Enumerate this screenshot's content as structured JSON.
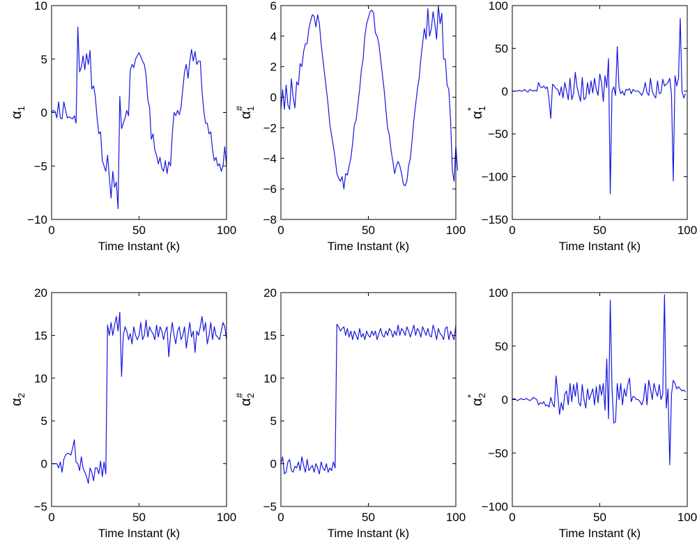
{
  "figure": {
    "description_title": "Six-panel time series figure"
  },
  "colors": {
    "series": "#1515e0",
    "axis": "#000000",
    "background": "#ffffff"
  },
  "chart_data": [
    {
      "id": "p11",
      "type": "line",
      "ylabel": {
        "symbol": "α",
        "sub": "1",
        "sup": ""
      },
      "xlabel": "Time Instant (k)",
      "xlim": [
        0,
        100
      ],
      "ylim": [
        -10,
        10
      ],
      "xticks": [
        0,
        50,
        100
      ],
      "yticks": [
        -10,
        -5,
        0,
        5,
        10
      ],
      "xtick_labels": [
        "0",
        "50",
        "100"
      ],
      "ytick_labels": [
        "−10",
        "−5",
        "0",
        "5",
        "10"
      ],
      "series": [
        {
          "name": "alpha1",
          "x_start": 0,
          "values": [
            0.0,
            0.2,
            0.1,
            -0.5,
            1.0,
            -0.5,
            -0.6,
            1.0,
            0.2,
            -0.5,
            -0.4,
            -0.5,
            -0.6,
            -0.3,
            -1.0,
            8.0,
            3.8,
            4.2,
            5.3,
            4.0,
            5.5,
            4.5,
            5.8,
            2.2,
            2.5,
            1.5,
            -0.5,
            -2.0,
            -1.8,
            -4.5,
            -5.0,
            -5.5,
            -4.0,
            -6.0,
            -8.0,
            -5.5,
            -7.0,
            -6.5,
            -9.0,
            1.5,
            -1.5,
            -1.0,
            -0.5,
            0.2,
            -0.3,
            4.0,
            4.5,
            4.2,
            5.0,
            5.3,
            5.6,
            5.2,
            4.8,
            4.5,
            3.5,
            1.2,
            0.5,
            -2.5,
            -2.0,
            -3.5,
            -4.0,
            -4.8,
            -4.2,
            -5.2,
            -5.5,
            -4.5,
            -5.7,
            -4.6,
            -5.0,
            -2.0,
            0.0,
            -0.3,
            0.2,
            -0.2,
            0.5,
            2.2,
            3.8,
            4.5,
            3.2,
            4.8,
            5.9,
            4.8,
            5.7,
            4.5,
            4.8,
            4.8,
            2.0,
            0.2,
            -1.0,
            -1.0,
            -2.0,
            -1.8,
            -3.5,
            -4.5,
            -4.2,
            -5.0,
            -4.8,
            -5.5,
            -5.0,
            -3.2,
            -5.0
          ]
        }
      ]
    },
    {
      "id": "p12",
      "type": "line",
      "ylabel": {
        "symbol": "α",
        "sub": "1",
        "sup": "#"
      },
      "xlabel": "Time Instant (k)",
      "xlim": [
        0,
        100
      ],
      "ylim": [
        -8,
        6
      ],
      "xticks": [
        0,
        50,
        100
      ],
      "yticks": [
        -8,
        -6,
        -4,
        -2,
        0,
        2,
        4,
        6
      ],
      "xtick_labels": [
        "0",
        "50",
        "100"
      ],
      "ytick_labels": [
        "−8",
        "−6",
        "−4",
        "−2",
        "0",
        "2",
        "4",
        "6"
      ],
      "series": [
        {
          "name": "alpha1-sharp",
          "x_start": 0,
          "values": [
            -0.8,
            0.5,
            -0.8,
            0.8,
            -0.5,
            -0.8,
            1.2,
            0.0,
            -0.7,
            1.0,
            0.8,
            2.2,
            2.0,
            3.0,
            3.5,
            3.5,
            4.5,
            5.0,
            5.4,
            5.3,
            4.6,
            5.4,
            4.8,
            3.5,
            2.5,
            1.5,
            0.5,
            -0.5,
            -1.8,
            -2.5,
            -3.2,
            -4.0,
            -5.0,
            -5.3,
            -5.5,
            -5.2,
            -6.0,
            -5.0,
            -5.1,
            -4.5,
            -4.0,
            -3.0,
            -1.8,
            -1.5,
            -0.5,
            0.5,
            1.8,
            2.5,
            4.0,
            4.8,
            5.2,
            5.6,
            5.7,
            5.5,
            4.2,
            4.0,
            3.5,
            2.5,
            1.5,
            0.5,
            -0.8,
            -2.0,
            -2.5,
            -3.5,
            -4.2,
            -5.0,
            -4.5,
            -4.2,
            -4.5,
            -5.0,
            -5.7,
            -5.8,
            -5.5,
            -4.5,
            -4.0,
            -2.8,
            -1.5,
            -0.5,
            0.5,
            1.2,
            2.5,
            3.5,
            4.5,
            3.8,
            5.8,
            4.0,
            4.5,
            5.6,
            4.8,
            3.8,
            6.0,
            4.8,
            5.5,
            2.5,
            2.5,
            0.8,
            0.5,
            -1.5,
            -4.8,
            -5.5,
            -3.2,
            -4.8
          ]
        }
      ]
    },
    {
      "id": "p13",
      "type": "line",
      "ylabel": {
        "symbol": "α",
        "sub": "1",
        "sup": "*"
      },
      "xlabel": "Time Instant (k)",
      "xlim": [
        0,
        100
      ],
      "ylim": [
        -150,
        100
      ],
      "xticks": [
        0,
        50,
        100
      ],
      "yticks": [
        -150,
        -100,
        -50,
        0,
        50,
        100
      ],
      "xtick_labels": [
        "0",
        "50",
        "100"
      ],
      "ytick_labels": [
        "−150",
        "−100",
        "−50",
        "0",
        "50",
        "100"
      ],
      "series": [
        {
          "name": "alpha1-star",
          "x_start": 0,
          "values": [
            0,
            0,
            0,
            0,
            1,
            0,
            0,
            2,
            0,
            -1,
            2,
            1,
            0,
            1,
            0,
            10,
            5,
            4,
            6,
            3,
            5,
            -10,
            -32,
            8,
            6,
            3,
            2,
            -5,
            5,
            -8,
            10,
            0,
            -10,
            15,
            -10,
            -3,
            22,
            5,
            -4,
            -12,
            16,
            -10,
            -8,
            10,
            -4,
            12,
            -2,
            15,
            2,
            -5,
            20,
            10,
            -12,
            18,
            4,
            38,
            -120,
            0,
            5,
            -5,
            52,
            5,
            -3,
            0,
            -5,
            2,
            1,
            3,
            -3,
            2,
            0,
            0,
            0,
            -2,
            -5,
            0,
            10,
            -2,
            -5,
            15,
            0,
            -5,
            -8,
            12,
            -3,
            -2,
            14,
            6,
            8,
            10,
            15,
            -4,
            -105,
            18,
            6,
            15,
            85,
            0,
            -8,
            -3
          ]
        }
      ]
    },
    {
      "id": "p21",
      "type": "line",
      "ylabel": {
        "symbol": "α",
        "sub": "2",
        "sup": ""
      },
      "xlabel": "Time Instant (k)",
      "xlim": [
        0,
        100
      ],
      "ylim": [
        -5,
        20
      ],
      "xticks": [
        0,
        50,
        100
      ],
      "yticks": [
        -5,
        0,
        5,
        10,
        15,
        20
      ],
      "xtick_labels": [
        "0",
        "50",
        "100"
      ],
      "ytick_labels": [
        "−5",
        "0",
        "5",
        "10",
        "15",
        "20"
      ],
      "series": [
        {
          "name": "alpha2",
          "x_start": 0,
          "values": [
            0.0,
            0.0,
            0.0,
            0.0,
            -0.5,
            0.2,
            -1.0,
            0.5,
            1.0,
            1.2,
            1.2,
            1.0,
            1.8,
            2.8,
            0.2,
            0.0,
            -0.8,
            0.8,
            -0.5,
            -1.0,
            -1.5,
            -2.3,
            -0.5,
            -1.0,
            -2.0,
            -0.5,
            -0.5,
            -1.2,
            0.3,
            -1.5,
            0.2,
            -1.2,
            16.2,
            15.0,
            16.5,
            15.0,
            16.2,
            17.2,
            15.5,
            17.7,
            10.2,
            15.0,
            16.0,
            15.5,
            14.5,
            15.2,
            14.0,
            16.0,
            15.0,
            14.5,
            15.0,
            16.5,
            14.5,
            15.0,
            16.8,
            14.8,
            16.0,
            15.5,
            15.2,
            14.5,
            16.2,
            14.8,
            16.0,
            15.5,
            14.5,
            15.5,
            16.0,
            12.5,
            15.0,
            16.5,
            15.0,
            14.0,
            15.5,
            16.0,
            14.5,
            15.0,
            16.0,
            13.5,
            15.0,
            16.5,
            14.8,
            15.5,
            13.0,
            15.5,
            15.0,
            16.0,
            17.2,
            15.5,
            16.5,
            14.0,
            15.0,
            16.5,
            14.5,
            16.0,
            15.0,
            14.8,
            14.5,
            15.5,
            16.5,
            16.0,
            14.5
          ]
        }
      ]
    },
    {
      "id": "p22",
      "type": "line",
      "ylabel": {
        "symbol": "α",
        "sub": "2",
        "sup": "#"
      },
      "xlabel": "Time Instant (k)",
      "xlim": [
        0,
        100
      ],
      "ylim": [
        -5,
        20
      ],
      "xticks": [
        0,
        50,
        100
      ],
      "yticks": [
        -5,
        0,
        5,
        10,
        15,
        20
      ],
      "xtick_labels": [
        "0",
        "50",
        "100"
      ],
      "ytick_labels": [
        "−5",
        "0",
        "5",
        "10",
        "15",
        "20"
      ],
      "series": [
        {
          "name": "alpha2-sharp",
          "x_start": 0,
          "values": [
            0.0,
            0.8,
            -1.2,
            -1.0,
            0.2,
            0.5,
            -0.8,
            -1.0,
            -0.3,
            -0.5,
            0.2,
            -0.8,
            0.8,
            -0.2,
            -1.0,
            0.5,
            -0.8,
            -0.5,
            -0.2,
            -1.0,
            0.0,
            -0.5,
            -1.2,
            0.2,
            -0.5,
            -0.8,
            0.0,
            -1.0,
            -0.5,
            -0.8,
            0.2,
            -0.5,
            16.3,
            16.0,
            15.5,
            15.8,
            16.0,
            15.0,
            15.8,
            14.8,
            15.5,
            14.5,
            15.5,
            15.0,
            14.5,
            15.8,
            14.8,
            15.2,
            14.5,
            15.5,
            15.0,
            14.8,
            15.5,
            15.0,
            15.5,
            14.5,
            15.2,
            15.8,
            15.0,
            14.8,
            15.5,
            15.0,
            15.8,
            15.5,
            14.8,
            15.5,
            15.0,
            16.2,
            15.0,
            15.8,
            15.5,
            15.0,
            16.0,
            15.5,
            14.8,
            15.5,
            16.2,
            15.0,
            15.8,
            15.5,
            14.8,
            16.0,
            15.5,
            15.0,
            15.8,
            15.0,
            14.8,
            16.2,
            15.5,
            14.5,
            15.8,
            15.2,
            15.0,
            14.5,
            15.8,
            16.0,
            14.5,
            15.5,
            15.0,
            14.5,
            16.2
          ]
        }
      ]
    },
    {
      "id": "p23",
      "type": "line",
      "ylabel": {
        "symbol": "α",
        "sub": "2",
        "sup": "*"
      },
      "xlabel": "Time Instant (k)",
      "xlim": [
        0,
        100
      ],
      "ylim": [
        -100,
        100
      ],
      "xticks": [
        0,
        50,
        100
      ],
      "yticks": [
        -100,
        -50,
        0,
        50,
        100
      ],
      "xtick_labels": [
        "0",
        "50",
        "100"
      ],
      "ytick_labels": [
        "−100",
        "−50",
        "0",
        "50",
        "100"
      ],
      "series": [
        {
          "name": "alpha2-star",
          "x_start": 0,
          "values": [
            0,
            1,
            0,
            -1,
            0,
            1,
            0,
            0,
            1,
            0,
            -1,
            0,
            2,
            1,
            0,
            -5,
            -3,
            -4,
            -2,
            -6,
            -5,
            -7,
            2,
            -4,
            -7,
            22,
            5,
            -14,
            -3,
            -10,
            5,
            8,
            -5,
            15,
            -2,
            14,
            3,
            16,
            -3,
            -6,
            14,
            0,
            -8,
            10,
            0,
            5,
            10,
            -5,
            12,
            -3,
            14,
            4,
            15,
            -10,
            38,
            -18,
            93,
            10,
            -22,
            -21,
            15,
            0,
            15,
            -5,
            10,
            3,
            14,
            20,
            -2,
            3,
            2,
            0,
            0,
            -2,
            -5,
            0,
            15,
            -5,
            18,
            10,
            0,
            15,
            8,
            3,
            14,
            0,
            5,
            98,
            -8,
            10,
            -61,
            5,
            18,
            15,
            10,
            12,
            10,
            8,
            9,
            7
          ]
        }
      ]
    }
  ]
}
